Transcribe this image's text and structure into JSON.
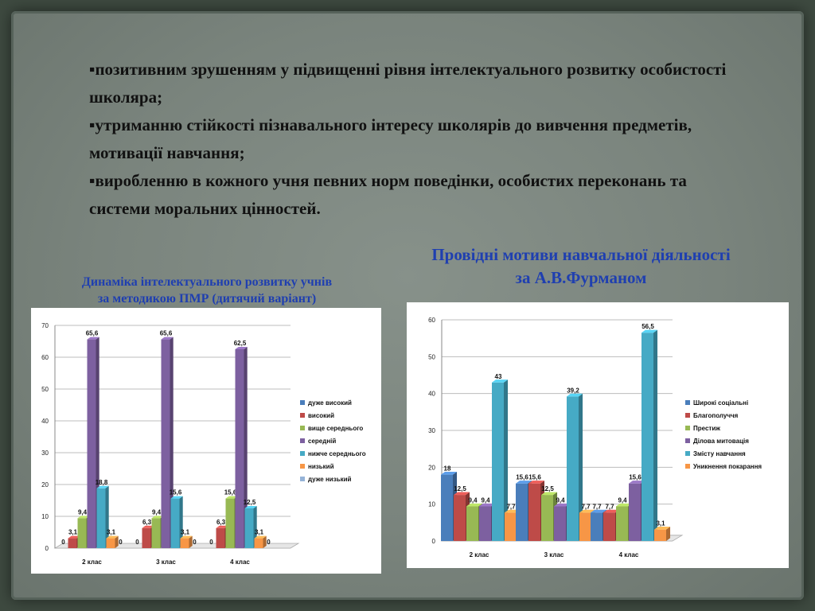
{
  "bullets": [
    "▪позитивним зрушенням у підвищенні рівня інтелектуального розвитку особистості школяра;",
    "▪утриманню стійкості пізнавального інтересу школярів до вивчення предметів, мотивації навчання;",
    "▪виробленню в кожного учня певних норм поведінки, особистих переконань та системи моральних цінностей."
  ],
  "left_caption": [
    "Динаміка інтелектуального розвитку учнів",
    "за методикою ПМР (дитячий варіант)"
  ],
  "right_caption": [
    "Провідні  мотиви навчальної діяльності",
    "за А.В.Фурманом"
  ],
  "chart_data": [
    {
      "type": "bar",
      "title": "",
      "categories": [
        "2 клас",
        "3 клас",
        "4 клас"
      ],
      "ylim": [
        0,
        70
      ],
      "yticks": [
        0,
        10,
        20,
        30,
        40,
        50,
        60,
        70
      ],
      "grid": true,
      "legend": "right",
      "series": [
        {
          "name": "дуже високий",
          "color": "#4a7ebb",
          "values": [
            0,
            0,
            0
          ],
          "labels": [
            "0",
            "0",
            "0"
          ]
        },
        {
          "name": "високий",
          "color": "#be4b48",
          "values": [
            3.1,
            6.3,
            6.3
          ],
          "labels": [
            "3,1",
            "6,3",
            "6,3"
          ]
        },
        {
          "name": "вище середнього",
          "color": "#98b954",
          "values": [
            9.4,
            9.4,
            15.6
          ],
          "labels": [
            "9,4",
            "9,4",
            "15,6"
          ]
        },
        {
          "name": "середній",
          "color": "#7d60a0",
          "values": [
            65.6,
            65.6,
            62.5
          ],
          "labels": [
            "65,6",
            "65,6",
            "62,5"
          ]
        },
        {
          "name": "нижче середнього",
          "color": "#46aac5",
          "values": [
            18.8,
            15.6,
            12.5
          ],
          "labels": [
            "18,8",
            "15,6",
            "12,5"
          ]
        },
        {
          "name": "низький",
          "color": "#f79646",
          "values": [
            3.1,
            3.1,
            3.1
          ],
          "labels": [
            "3,1",
            "3,1",
            "3,1"
          ]
        },
        {
          "name": "дуже низький",
          "color": "#95b3d7",
          "values": [
            0,
            0,
            0
          ],
          "labels": [
            "0",
            "0",
            "0"
          ]
        }
      ]
    },
    {
      "type": "bar",
      "title": "",
      "categories": [
        "2 клас",
        "3 клас",
        "4 клас"
      ],
      "ylim": [
        0,
        60
      ],
      "yticks": [
        0,
        10,
        20,
        30,
        40,
        50,
        60
      ],
      "grid": true,
      "legend": "right",
      "series": [
        {
          "name": "Широкі соціальні",
          "color": "#4a7ebb",
          "values": [
            18,
            15.6,
            7.7
          ],
          "labels": [
            "18",
            "15,6",
            "7,7"
          ]
        },
        {
          "name": "Благополуччя",
          "color": "#be4b48",
          "values": [
            12.5,
            15.6,
            7.7
          ],
          "labels": [
            "12,5",
            "15,6",
            "7,7"
          ]
        },
        {
          "name": "Престиж",
          "color": "#98b954",
          "values": [
            9.4,
            12.5,
            9.4
          ],
          "labels": [
            "9,4",
            "12,5",
            "9,4"
          ]
        },
        {
          "name": "Ділова митовація",
          "color": "#7d60a0",
          "values": [
            9.4,
            9.4,
            15.6
          ],
          "labels": [
            "9,4",
            "9,4",
            "15,6"
          ]
        },
        {
          "name": "Змісту навчання",
          "color": "#46aac5",
          "values": [
            43,
            39.2,
            56.5
          ],
          "labels": [
            "43",
            "39,2",
            "56,5"
          ]
        },
        {
          "name": "Уникнення покарання",
          "color": "#f79646",
          "values": [
            7.7,
            7.7,
            3.1
          ],
          "labels": [
            "7,7",
            "7,7",
            "3,1"
          ]
        }
      ]
    }
  ]
}
